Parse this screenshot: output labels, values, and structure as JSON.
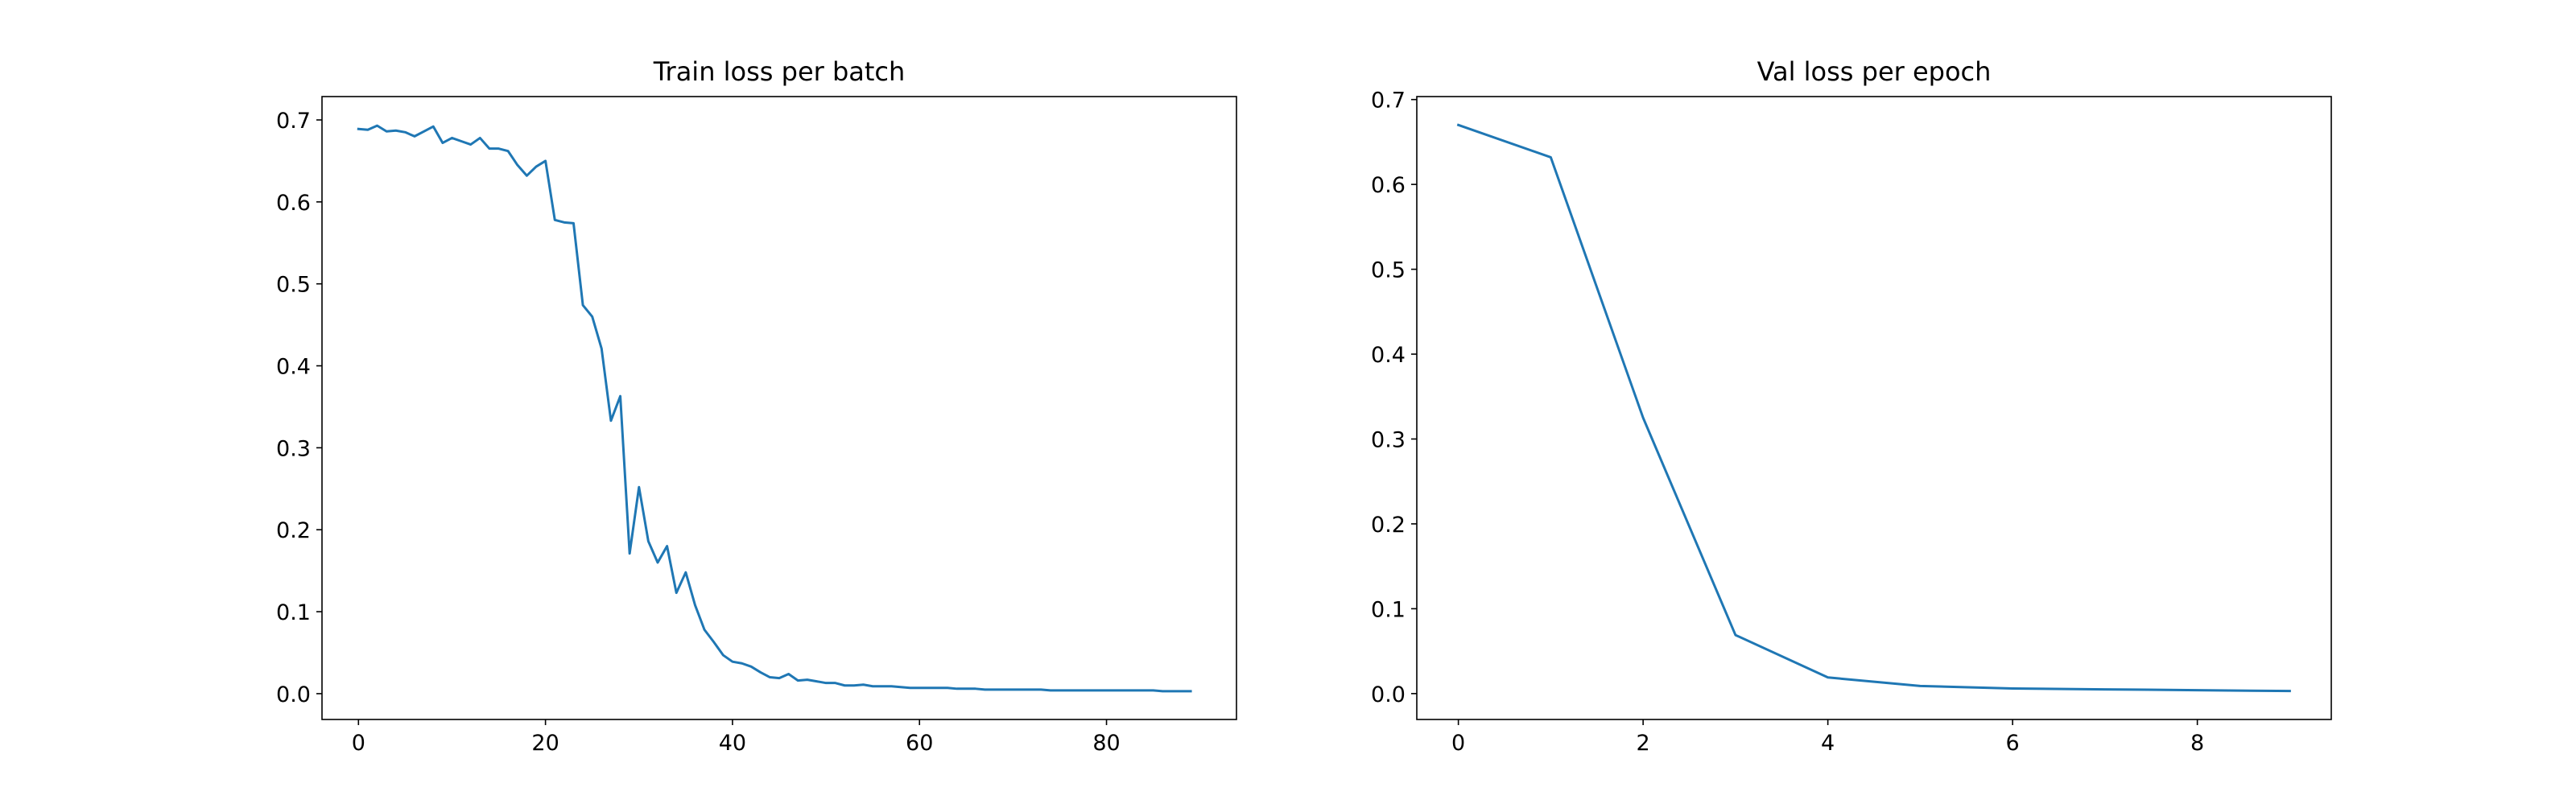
{
  "chart_data": [
    {
      "type": "line",
      "title": "Train loss per batch",
      "xlabel": "",
      "ylabel": "",
      "xlim": [
        -3.9,
        93.9
      ],
      "ylim": [
        -0.0315,
        0.7285
      ],
      "xticks": [
        0,
        20,
        40,
        60,
        80
      ],
      "yticks": [
        0.0,
        0.1,
        0.2,
        0.3,
        0.4,
        0.5,
        0.6,
        0.7
      ],
      "xtick_labels": [
        "0",
        "20",
        "40",
        "60",
        "80"
      ],
      "ytick_labels": [
        "0.0",
        "0.1",
        "0.2",
        "0.3",
        "0.4",
        "0.5",
        "0.6",
        "0.7"
      ],
      "grid": false,
      "line_color": "#1f77b4",
      "series": [
        {
          "x": [
            0,
            1,
            2,
            3,
            4,
            5,
            6,
            7,
            8,
            9,
            10,
            11,
            12,
            13,
            14,
            15,
            16,
            17,
            18,
            19,
            20,
            21,
            22,
            23,
            24,
            25,
            26,
            27,
            28,
            29,
            30,
            31,
            32,
            33,
            34,
            35,
            36,
            37,
            38,
            39,
            40,
            41,
            42,
            43,
            44,
            45,
            46,
            47,
            48,
            49,
            50,
            51,
            52,
            53,
            54,
            55,
            56,
            57,
            58,
            59,
            60,
            61,
            62,
            63,
            64,
            65,
            66,
            67,
            68,
            69,
            70,
            71,
            72,
            73,
            74,
            75,
            76,
            77,
            78,
            79,
            80,
            81,
            82,
            83,
            84,
            85,
            86,
            87,
            88,
            89
          ],
          "values": [
            0.689,
            0.688,
            0.693,
            0.686,
            0.687,
            0.685,
            0.68,
            0.686,
            0.692,
            0.672,
            0.678,
            0.674,
            0.67,
            0.678,
            0.665,
            0.665,
            0.662,
            0.645,
            0.632,
            0.643,
            0.65,
            0.578,
            0.575,
            0.574,
            0.474,
            0.46,
            0.421,
            0.333,
            0.363,
            0.171,
            0.252,
            0.186,
            0.16,
            0.18,
            0.123,
            0.148,
            0.108,
            0.078,
            0.063,
            0.047,
            0.039,
            0.037,
            0.033,
            0.026,
            0.02,
            0.019,
            0.024,
            0.016,
            0.017,
            0.015,
            0.013,
            0.013,
            0.01,
            0.01,
            0.011,
            0.009,
            0.009,
            0.009,
            0.008,
            0.007,
            0.007,
            0.007,
            0.007,
            0.007,
            0.006,
            0.006,
            0.006,
            0.005,
            0.005,
            0.005,
            0.005,
            0.005,
            0.005,
            0.005,
            0.004,
            0.004,
            0.004,
            0.004,
            0.004,
            0.004,
            0.004,
            0.004,
            0.004,
            0.004,
            0.004,
            0.004,
            0.003,
            0.003,
            0.003,
            0.003
          ]
        }
      ]
    },
    {
      "type": "line",
      "title": "Val loss per epoch",
      "xlabel": "",
      "ylabel": "",
      "xlim": [
        -0.45,
        9.45
      ],
      "ylim": [
        -0.0305,
        0.7035
      ],
      "xticks": [
        0,
        2,
        4,
        6,
        8
      ],
      "yticks": [
        0.0,
        0.1,
        0.2,
        0.3,
        0.4,
        0.5,
        0.6,
        0.7
      ],
      "xtick_labels": [
        "0",
        "2",
        "4",
        "6",
        "8"
      ],
      "ytick_labels": [
        "0.0",
        "0.1",
        "0.2",
        "0.3",
        "0.4",
        "0.5",
        "0.6",
        "0.7"
      ],
      "grid": false,
      "line_color": "#1f77b4",
      "series": [
        {
          "x": [
            0,
            1,
            2,
            3,
            4,
            5,
            6,
            7,
            8,
            9
          ],
          "values": [
            0.67,
            0.632,
            0.325,
            0.069,
            0.019,
            0.009,
            0.006,
            0.005,
            0.004,
            0.003
          ]
        }
      ]
    }
  ]
}
